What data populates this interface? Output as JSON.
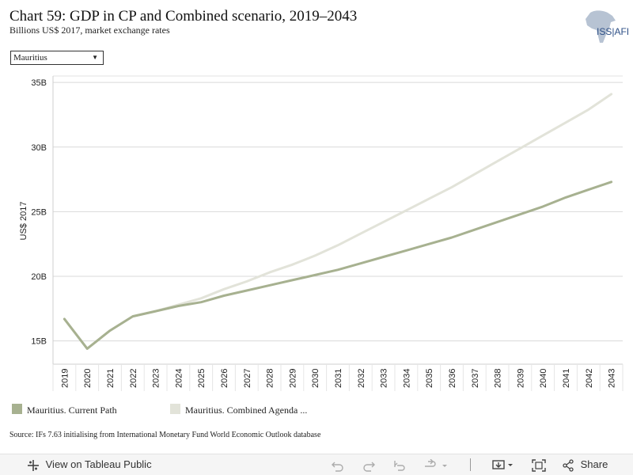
{
  "header": {
    "title": "Chart 59: GDP in CP and Combined scenario, 2019–2043",
    "subtitle": "Billions US$ 2017, market exchange rates",
    "logo_text": "ISS|AFI"
  },
  "filter": {
    "selected": "Mauritius"
  },
  "legend": [
    {
      "label": "Mauritius. Current Path",
      "color": "#a7b190"
    },
    {
      "label": "Mauritius. Combined Agenda ...",
      "color": "#e2e3d9"
    }
  ],
  "source": "Source: IFs 7.63 initialising from International Monetary Fund World Economic Outlook database",
  "chart_data": {
    "type": "line",
    "ylabel": "US$ 2017",
    "xlabel": "",
    "ylim": [
      13.2,
      35.5
    ],
    "yticks": [
      15,
      20,
      25,
      30,
      35
    ],
    "ytick_labels": [
      "15B",
      "20B",
      "25B",
      "30B",
      "35B"
    ],
    "x": [
      "2019",
      "2020",
      "2021",
      "2022",
      "2023",
      "2024",
      "2025",
      "2026",
      "2027",
      "2028",
      "2029",
      "2030",
      "2031",
      "2032",
      "2033",
      "2034",
      "2035",
      "2036",
      "2037",
      "2038",
      "2039",
      "2040",
      "2041",
      "2042",
      "2043"
    ],
    "grid": true,
    "series": [
      {
        "name": "Mauritius. Current Path",
        "color": "#a7b190",
        "values": [
          16.7,
          14.4,
          15.8,
          16.9,
          17.3,
          17.7,
          18.0,
          18.5,
          18.9,
          19.3,
          19.7,
          20.1,
          20.5,
          21.0,
          21.5,
          22.0,
          22.5,
          23.0,
          23.6,
          24.2,
          24.8,
          25.4,
          26.1,
          26.7,
          27.3
        ]
      },
      {
        "name": "Mauritius. Combined Agenda ...",
        "color": "#e2e3d9",
        "values": [
          16.7,
          14.4,
          15.8,
          16.9,
          17.3,
          17.8,
          18.3,
          19.0,
          19.6,
          20.3,
          20.9,
          21.6,
          22.4,
          23.3,
          24.2,
          25.1,
          26.0,
          26.9,
          27.9,
          28.9,
          29.9,
          30.9,
          31.9,
          32.9,
          34.1
        ]
      }
    ]
  },
  "toolbar": {
    "view_label": "View on Tableau Public",
    "share_label": "Share"
  }
}
